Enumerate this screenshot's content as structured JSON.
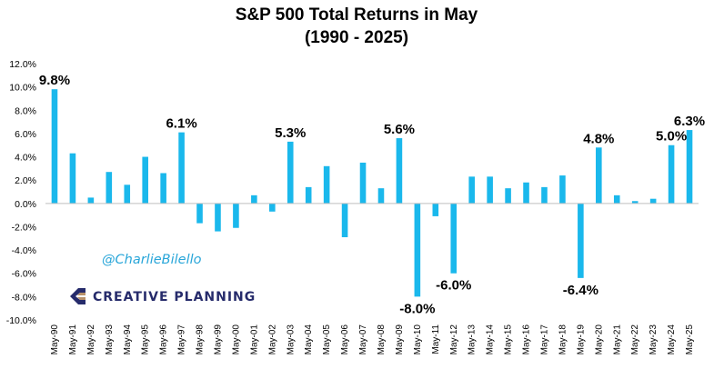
{
  "chart_data": {
    "type": "bar",
    "title": "S&P 500 Total Returns in May",
    "subtitle": "(1990 - 2025)",
    "xlabel": "",
    "ylabel": "",
    "ylim": [
      -10,
      12
    ],
    "yticks": [
      "12.0%",
      "10.0%",
      "8.0%",
      "6.0%",
      "4.0%",
      "2.0%",
      "0.0%",
      "-2.0%",
      "-4.0%",
      "-6.0%",
      "-8.0%",
      "-10.0%"
    ],
    "ytick_values": [
      12,
      10,
      8,
      6,
      4,
      2,
      0,
      -2,
      -4,
      -6,
      -8,
      -10
    ],
    "grid": false,
    "bar_color": "#1ab8ec",
    "categories": [
      "May-90",
      "May-91",
      "May-92",
      "May-93",
      "May-94",
      "May-95",
      "May-96",
      "May-97",
      "May-98",
      "May-99",
      "May-00",
      "May-01",
      "May-02",
      "May-03",
      "May-04",
      "May-05",
      "May-06",
      "May-07",
      "May-08",
      "May-09",
      "May-10",
      "May-11",
      "May-12",
      "May-13",
      "May-14",
      "May-15",
      "May-16",
      "May-17",
      "May-18",
      "May-19",
      "May-20",
      "May-21",
      "May-22",
      "May-23",
      "May-24",
      "May-25"
    ],
    "values": [
      9.8,
      4.3,
      0.5,
      2.7,
      1.6,
      4.0,
      2.6,
      6.1,
      -1.7,
      -2.4,
      -2.1,
      0.7,
      -0.7,
      5.3,
      1.4,
      3.2,
      -2.9,
      3.5,
      1.3,
      5.6,
      -8.0,
      -1.1,
      -6.0,
      2.3,
      2.3,
      1.3,
      1.8,
      1.4,
      2.4,
      -6.4,
      4.8,
      0.7,
      0.2,
      0.4,
      5.0,
      6.3
    ],
    "data_labels": [
      {
        "index": 0,
        "text": "9.8%"
      },
      {
        "index": 7,
        "text": "6.1%"
      },
      {
        "index": 13,
        "text": "5.3%"
      },
      {
        "index": 19,
        "text": "5.6%"
      },
      {
        "index": 20,
        "text": "-8.0%"
      },
      {
        "index": 22,
        "text": "-6.0%"
      },
      {
        "index": 29,
        "text": "-6.4%"
      },
      {
        "index": 30,
        "text": "4.8%"
      },
      {
        "index": 34,
        "text": "5.0%"
      },
      {
        "index": 35,
        "text": "6.3%"
      }
    ]
  },
  "watermark": {
    "handle": "@CharlieBilello",
    "brand": "CREATIVE PLANNING"
  },
  "colors": {
    "handle": "#29a6d9",
    "brand_navy": "#262b6b",
    "brand_tan": "#b8916a"
  },
  "icons": {
    "logo": "creative-planning-logo-icon"
  }
}
